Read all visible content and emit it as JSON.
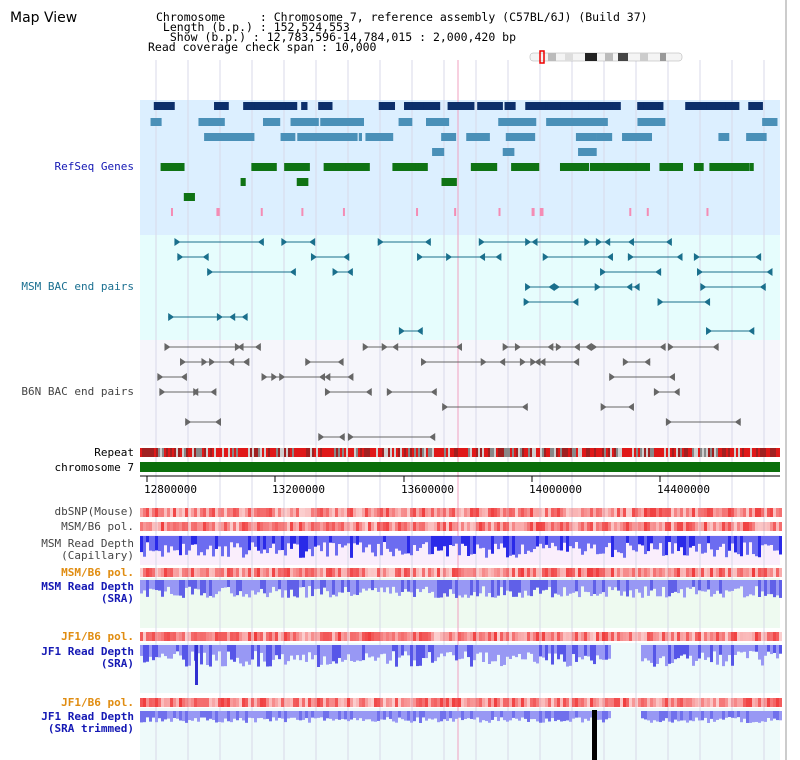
{
  "header": {
    "view_title": "Map View",
    "chromosome_line": "Chromosome     : Chromosome 7, reference assembly (C57BL/6J) (Build 37)",
    "length_line": " Length (b.p.) : 152,524,553",
    "show_line": "  Show (b.p.) : 12,783,596-14,784,015 : 2,000,420 bp",
    "coverage_line": "Read coverage check span : 10,000"
  },
  "tracks": {
    "refseq": "RefSeq Genes",
    "msm_bac": "MSM BAC end pairs",
    "b6n_bac": "B6N BAC end pairs",
    "repeat": "Repeat",
    "chromosome": "chromosome 7",
    "dbsnp": "dbSNP(Mouse)",
    "msm_b6_pol_1": "MSM/B6 pol.",
    "msm_depth_cap_1": "MSM Read Depth",
    "msm_depth_cap_2": "(Capillary)",
    "msm_b6_pol_2": "MSM/B6 pol.",
    "msm_depth_sra_1": "MSM Read Depth",
    "msm_depth_sra_2": "(SRA)",
    "jf1_b6_pol_1": "JF1/B6 pol.",
    "jf1_depth_sra_1": "JF1 Read Depth",
    "jf1_depth_sra_2": "(SRA)",
    "jf1_b6_pol_2": "JF1/B6 pol.",
    "jf1_depth_trim_1": "JF1 Read Depth",
    "jf1_depth_trim_2": "(SRA trimmed)"
  },
  "axis": {
    "ticks": [
      "12800000",
      "13200000",
      "13600000",
      "14000000",
      "14400000"
    ]
  },
  "colors": {
    "refseq_bg": "#dcefff",
    "msm_bg": "#e6fdfd",
    "b6n_bg": "#f6f6fb",
    "dark_gene": "#0d2f6b",
    "mid_gene": "#4a90b8",
    "green_gene": "#0f7314",
    "pink_gene": "#f48cb4",
    "chromosome_bar": "#0a6e0a",
    "repeat_red": "#e01818",
    "depth_blue": "#2a2ae8",
    "depth_light": "#9898f4",
    "pol_red": "#f03c3c",
    "label_blue": "#1418b4",
    "label_orange": "#e08c10"
  }
}
